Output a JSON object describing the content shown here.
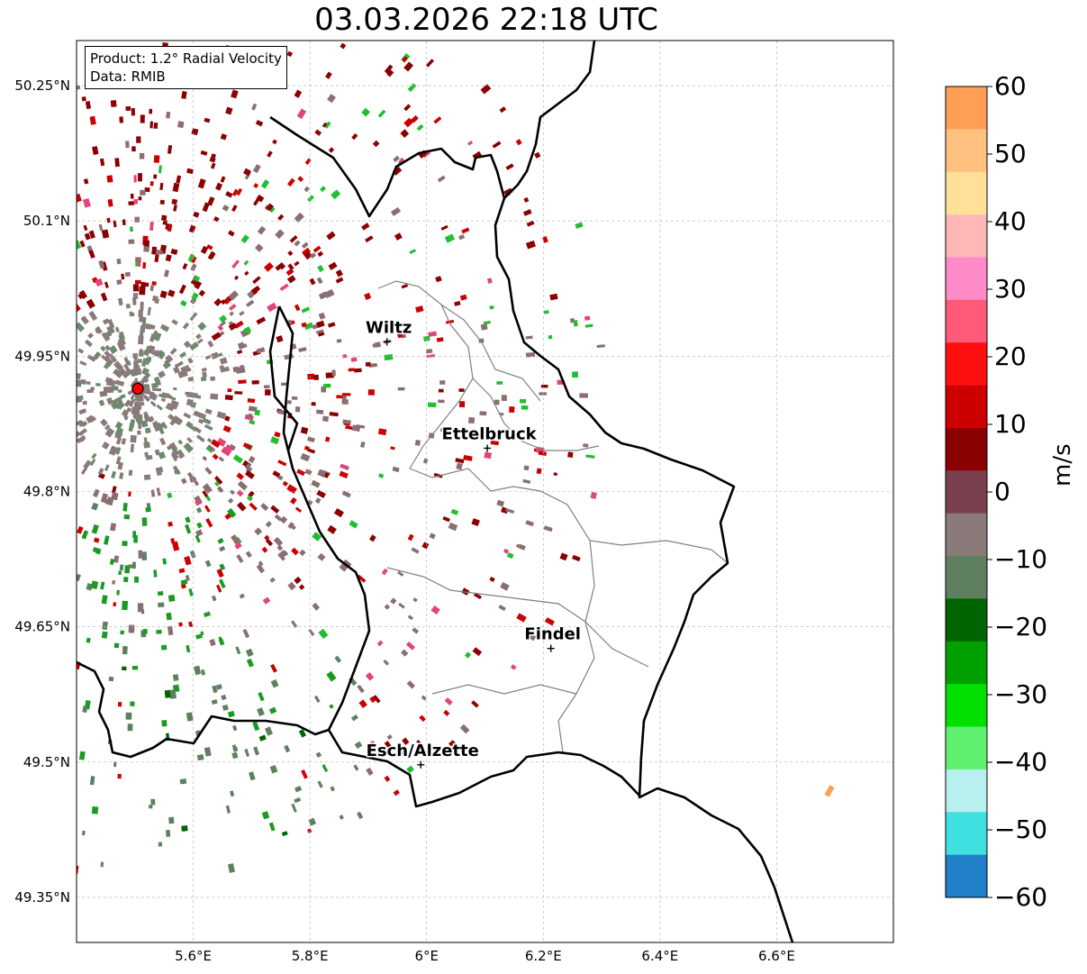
{
  "title": "03.03.2026 22:18 UTC",
  "info": {
    "product": "Product: 1.2° Radial Velocity",
    "data": "Data: RMIB"
  },
  "lon_ticks": [
    "5.6°E",
    "5.8°E",
    "6°E",
    "6.2°E",
    "6.4°E",
    "6.6°E"
  ],
  "lat_ticks": [
    "50.25°N",
    "50.1°N",
    "49.95°N",
    "49.8°N",
    "49.65°N",
    "49.5°N",
    "49.35°N"
  ],
  "map_extent": {
    "lon_min": 5.4,
    "lon_max": 6.8,
    "lat_min": 49.3,
    "lat_max": 50.3
  },
  "radar_site": {
    "lon": 5.505,
    "lat": 49.914,
    "color": "#ff0000"
  },
  "cities": [
    {
      "name": "Wiltz",
      "lon": 5.932,
      "lat": 49.966
    },
    {
      "name": "Ettelbruck",
      "lon": 6.104,
      "lat": 49.848
    },
    {
      "name": "Findel",
      "lon": 6.213,
      "lat": 49.626
    },
    {
      "name": "Esch/Alzette",
      "lon": 5.99,
      "lat": 49.497
    }
  ],
  "colorbar": {
    "unit": "m/s",
    "ticks": [
      "60",
      "50",
      "40",
      "30",
      "20",
      "10",
      "0",
      "−10",
      "−20",
      "−30",
      "−40",
      "−50",
      "−60"
    ],
    "range": [
      -60,
      60
    ],
    "colors_top_to_bottom": [
      "#ff9f55",
      "#ffc080",
      "#ffe09a",
      "#ffb7b7",
      "#ff8ac8",
      "#ff5a78",
      "#ff1010",
      "#cc0000",
      "#8b0000",
      "#7a4050",
      "#8a7a7a",
      "#5f8060",
      "#006400",
      "#00a000",
      "#00e000",
      "#60f070",
      "#b8f0f0",
      "#40e0e0",
      "#2080c8"
    ]
  },
  "chart_data": {
    "type": "map",
    "product": "1.2° Radial Velocity",
    "source": "RMIB",
    "timestamp": "03.03.2026 22:18 UTC"
  }
}
